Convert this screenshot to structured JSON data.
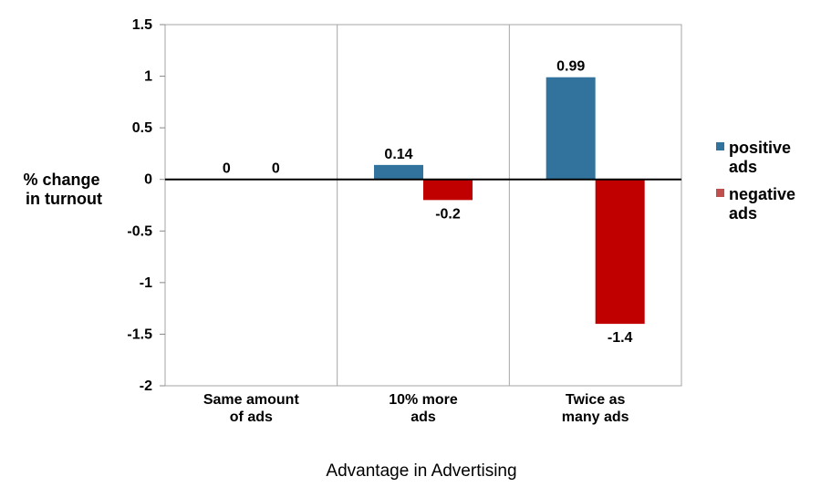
{
  "chart_data": {
    "type": "bar",
    "title": "",
    "categories": [
      [
        "Same amount",
        "of ads"
      ],
      [
        "10% more",
        "ads"
      ],
      [
        "Twice as",
        "many ads"
      ]
    ],
    "series": [
      {
        "name": [
          "positive",
          "ads"
        ],
        "color": "#31739c",
        "values": [
          0,
          0.14,
          0.99
        ],
        "labels": [
          "0",
          "0.14",
          "0.99"
        ]
      },
      {
        "name": [
          "negative",
          "ads"
        ],
        "color": "#c00000",
        "values": [
          0,
          -0.2,
          -1.4
        ],
        "labels": [
          "0",
          "-0.2",
          "-1.4"
        ]
      }
    ],
    "ylabel": [
      "% change",
      "in turnout"
    ],
    "xlabel": "Advantage in Advertising",
    "ylim": [
      -2,
      1.5
    ],
    "yticks": [
      1.5,
      1,
      0.5,
      0,
      -0.5,
      -1,
      -1.5,
      -2
    ],
    "ytick_labels": [
      "1.5",
      "1",
      "0.5",
      "0",
      "-0.5",
      "-1",
      "-1.5",
      "-2"
    ],
    "grid": "vertical category separators",
    "legend_position": "right"
  }
}
